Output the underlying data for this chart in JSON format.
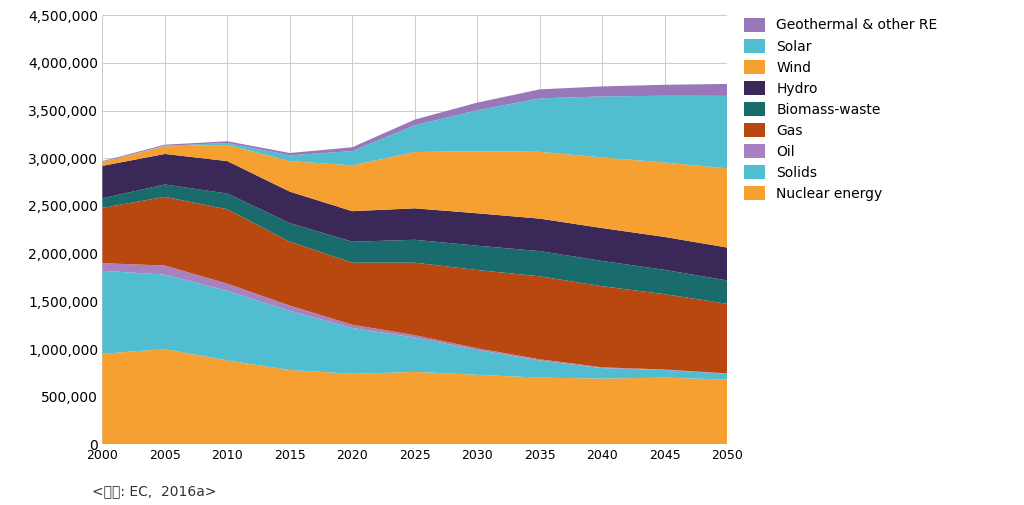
{
  "years": [
    2000,
    2005,
    2010,
    2015,
    2020,
    2025,
    2030,
    2035,
    2040,
    2045,
    2050
  ],
  "series": {
    "Nuclear energy": [
      950000,
      1000000,
      880000,
      780000,
      740000,
      760000,
      730000,
      700000,
      690000,
      700000,
      680000
    ],
    "Solids": [
      870000,
      780000,
      730000,
      620000,
      480000,
      360000,
      260000,
      180000,
      110000,
      80000,
      60000
    ],
    "Oil": [
      80000,
      95000,
      75000,
      55000,
      35000,
      25000,
      18000,
      12000,
      8000,
      5000,
      4000
    ],
    "Gas": [
      580000,
      720000,
      780000,
      670000,
      650000,
      760000,
      820000,
      870000,
      850000,
      790000,
      730000
    ],
    "Biomass-waste": [
      100000,
      130000,
      165000,
      195000,
      220000,
      240000,
      255000,
      265000,
      265000,
      255000,
      245000
    ],
    "Hydro": [
      340000,
      320000,
      340000,
      330000,
      320000,
      330000,
      340000,
      340000,
      345000,
      345000,
      345000
    ],
    "Wind": [
      40000,
      80000,
      170000,
      320000,
      480000,
      590000,
      650000,
      700000,
      740000,
      780000,
      830000
    ],
    "Solar": [
      2000,
      5000,
      20000,
      60000,
      150000,
      280000,
      430000,
      560000,
      640000,
      700000,
      760000
    ],
    "Geothermal & other RE": [
      8000,
      12000,
      18000,
      25000,
      40000,
      60000,
      80000,
      95000,
      105000,
      115000,
      125000
    ]
  },
  "colors": {
    "Nuclear energy": "#F5A030",
    "Solids": "#48B8D0",
    "Oil": "#A882C8",
    "Gas": "#B84810",
    "Biomass-waste": "#1A6B6B",
    "Hydro": "#3A2858",
    "Wind": "#F5A030",
    "Solar": "#48B8D0",
    "Geothermal & other RE": "#9878B8"
  },
  "ylim": [
    0,
    4500000
  ],
  "yticks": [
    0,
    500000,
    1000000,
    1500000,
    2000000,
    2500000,
    3000000,
    3500000,
    4000000,
    4500000
  ],
  "source_text": "<자료: EC,  2016a>",
  "legend_order": [
    "Geothermal & other RE",
    "Solar",
    "Wind",
    "Hydro",
    "Biomass-waste",
    "Gas",
    "Oil",
    "Solids",
    "Nuclear energy"
  ]
}
